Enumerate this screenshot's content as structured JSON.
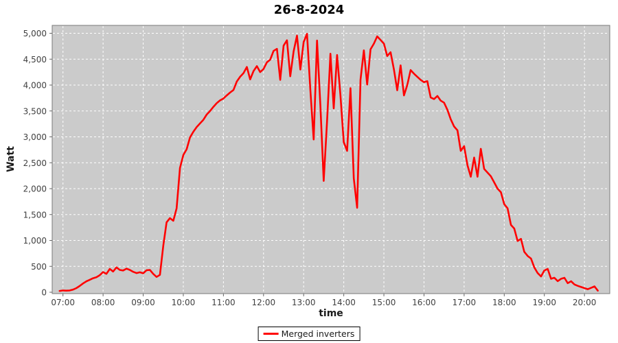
{
  "title": "26-8-2024",
  "y_axis": {
    "label": "Watt",
    "tick_labels": [
      "0",
      "500",
      "1,000",
      "1,500",
      "2,000",
      "2,500",
      "3,000",
      "3,500",
      "4,000",
      "4,500",
      "5,000"
    ],
    "tick_values": [
      0,
      500,
      1000,
      1500,
      2000,
      2500,
      3000,
      3500,
      4000,
      4500,
      5000
    ]
  },
  "x_axis": {
    "label": "time",
    "tick_labels": [
      "07:00",
      "08:00",
      "09:00",
      "10:00",
      "11:00",
      "12:00",
      "13:00",
      "14:00",
      "15:00",
      "16:00",
      "17:00",
      "18:00",
      "19:00",
      "20:00"
    ],
    "tick_minutes": [
      420,
      480,
      540,
      600,
      660,
      720,
      780,
      840,
      900,
      960,
      1020,
      1080,
      1140,
      1200
    ]
  },
  "legend": {
    "label": "Merged inverters"
  },
  "colors": {
    "plot_background": "#cbcbcb",
    "grid": "#ffffff",
    "series": "#ff0000",
    "outline": "#7a7a7a",
    "tick": "#666666",
    "tick_label": "#3f3f3f"
  },
  "chart_data": {
    "type": "line",
    "title": "26-8-2024",
    "xlabel": "time",
    "ylabel": "Watt",
    "ylim": [
      0,
      5250
    ],
    "x_range_labels": [
      "06:55",
      "20:20"
    ],
    "grid": "white dashed gridlines on gray plot background, hourly x-ticks, 500 W y-ticks",
    "legend_position": "bottom-center",
    "series": [
      {
        "name": "Merged inverters",
        "color": "#ff0000",
        "start_minute": 415,
        "step_minutes": 5,
        "unit": "W",
        "values": [
          25,
          35,
          30,
          35,
          50,
          80,
          120,
          170,
          210,
          240,
          270,
          290,
          330,
          390,
          355,
          450,
          400,
          480,
          430,
          420,
          455,
          430,
          395,
          370,
          385,
          365,
          425,
          430,
          355,
          295,
          335,
          900,
          1350,
          1430,
          1380,
          1620,
          2400,
          2650,
          2760,
          2990,
          3100,
          3190,
          3260,
          3330,
          3430,
          3500,
          3580,
          3650,
          3705,
          3740,
          3800,
          3855,
          3905,
          4070,
          4160,
          4230,
          4350,
          4110,
          4270,
          4365,
          4250,
          4310,
          4440,
          4490,
          4660,
          4700,
          4100,
          4760,
          4865,
          4170,
          4650,
          4955,
          4300,
          4830,
          4990,
          3900,
          2950,
          4860,
          3600,
          2150,
          3300,
          4605,
          3550,
          4580,
          3800,
          2900,
          2730,
          3940,
          2200,
          1630,
          4100,
          4670,
          4010,
          4690,
          4800,
          4940,
          4870,
          4800,
          4560,
          4635,
          4300,
          3900,
          4380,
          3800,
          4000,
          4290,
          4220,
          4160,
          4100,
          4055,
          4075,
          3760,
          3730,
          3790,
          3700,
          3660,
          3520,
          3340,
          3200,
          3126,
          2730,
          2820,
          2450,
          2230,
          2600,
          2230,
          2770,
          2380,
          2310,
          2240,
          2120,
          2000,
          1930,
          1700,
          1620,
          1300,
          1230,
          990,
          1030,
          780,
          700,
          650,
          480,
          370,
          305,
          420,
          450,
          260,
          280,
          215,
          260,
          278,
          175,
          212,
          150,
          123,
          100,
          80,
          58,
          85,
          113,
          30
        ]
      }
    ]
  }
}
